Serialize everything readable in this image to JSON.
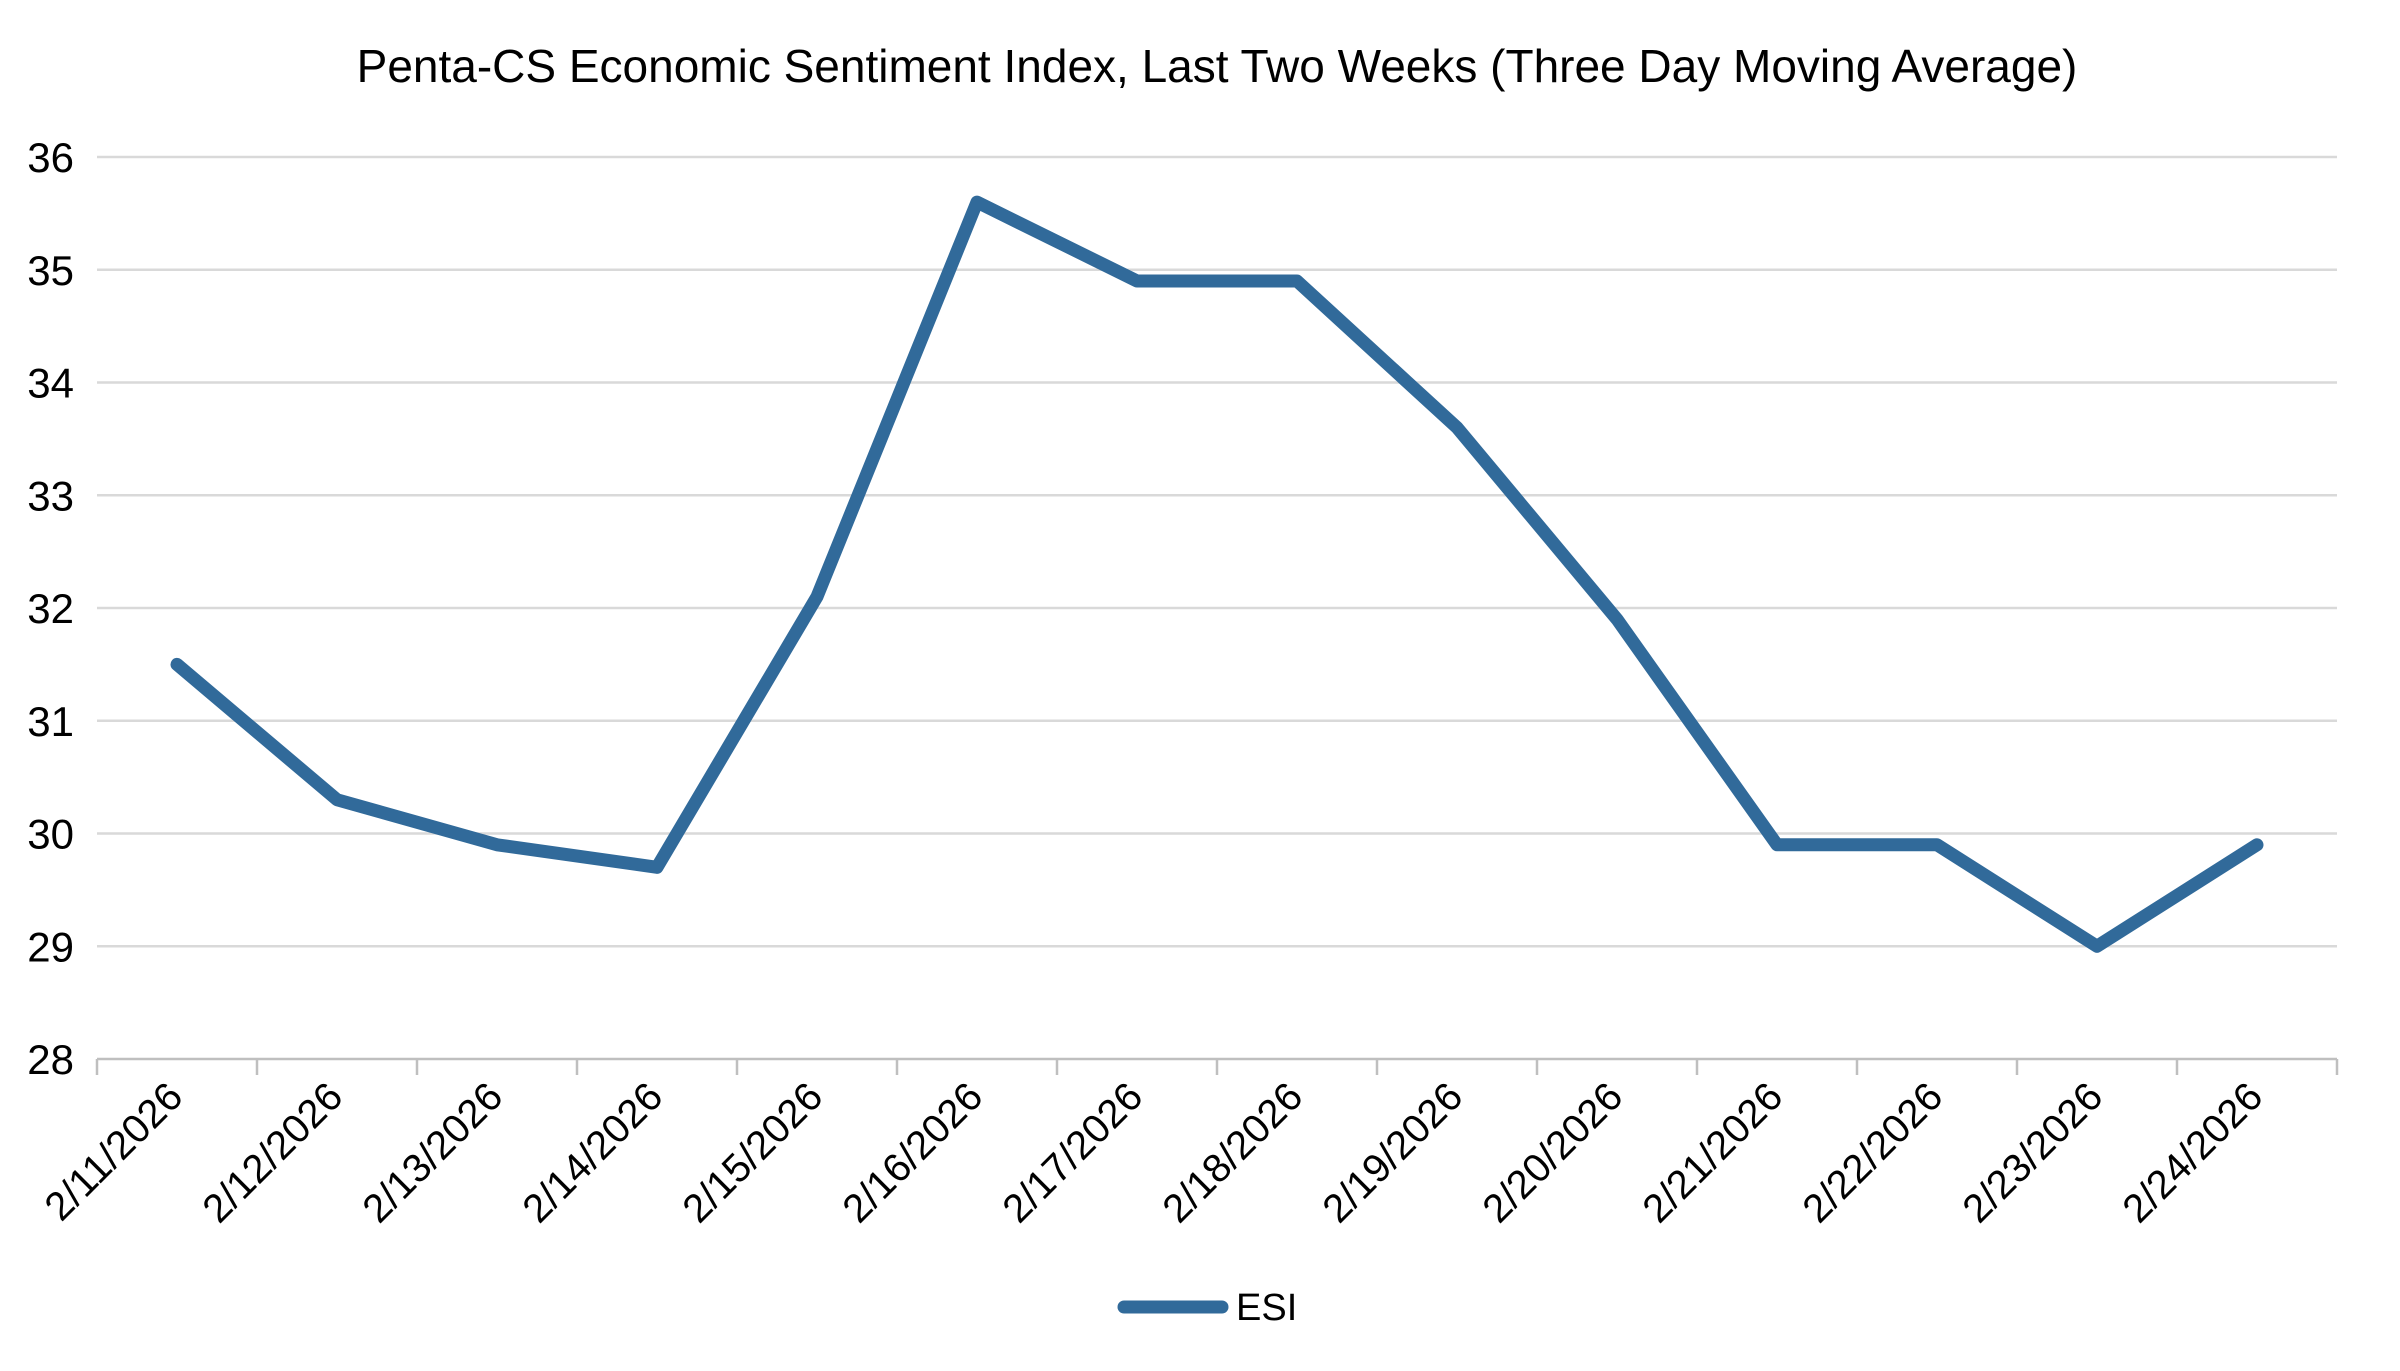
{
  "chart_data": {
    "type": "line",
    "title": "Penta-CS Economic Sentiment Index, Last Two Weeks (Three Day Moving Average)",
    "categories": [
      "2/11/2026",
      "2/12/2026",
      "2/13/2026",
      "2/14/2026",
      "2/15/2026",
      "2/16/2026",
      "2/17/2026",
      "2/18/2026",
      "2/19/2026",
      "2/20/2026",
      "2/21/2026",
      "2/22/2026",
      "2/23/2026",
      "2/24/2026"
    ],
    "series": [
      {
        "name": "ESI",
        "values": [
          31.5,
          30.3,
          29.9,
          29.7,
          32.1,
          35.6,
          34.9,
          34.9,
          33.6,
          31.9,
          29.9,
          29.9,
          29.0,
          29.9
        ]
      }
    ],
    "xlabel": "",
    "ylabel": "",
    "ylim": [
      28,
      36
    ],
    "yticks": [
      28,
      29,
      30,
      31,
      32,
      33,
      34,
      35,
      36
    ],
    "x_label_rotation": -45,
    "grid": "horizontal",
    "legend_position": "bottom"
  },
  "legend": {
    "items": [
      {
        "label": "ESI",
        "color": "#316A9A"
      }
    ]
  },
  "colors": {
    "series_line": "#316A9A",
    "gridline": "#D9D9D9",
    "axis_line": "#BFBFBF",
    "text": "#000000",
    "background": "#FFFFFF"
  }
}
